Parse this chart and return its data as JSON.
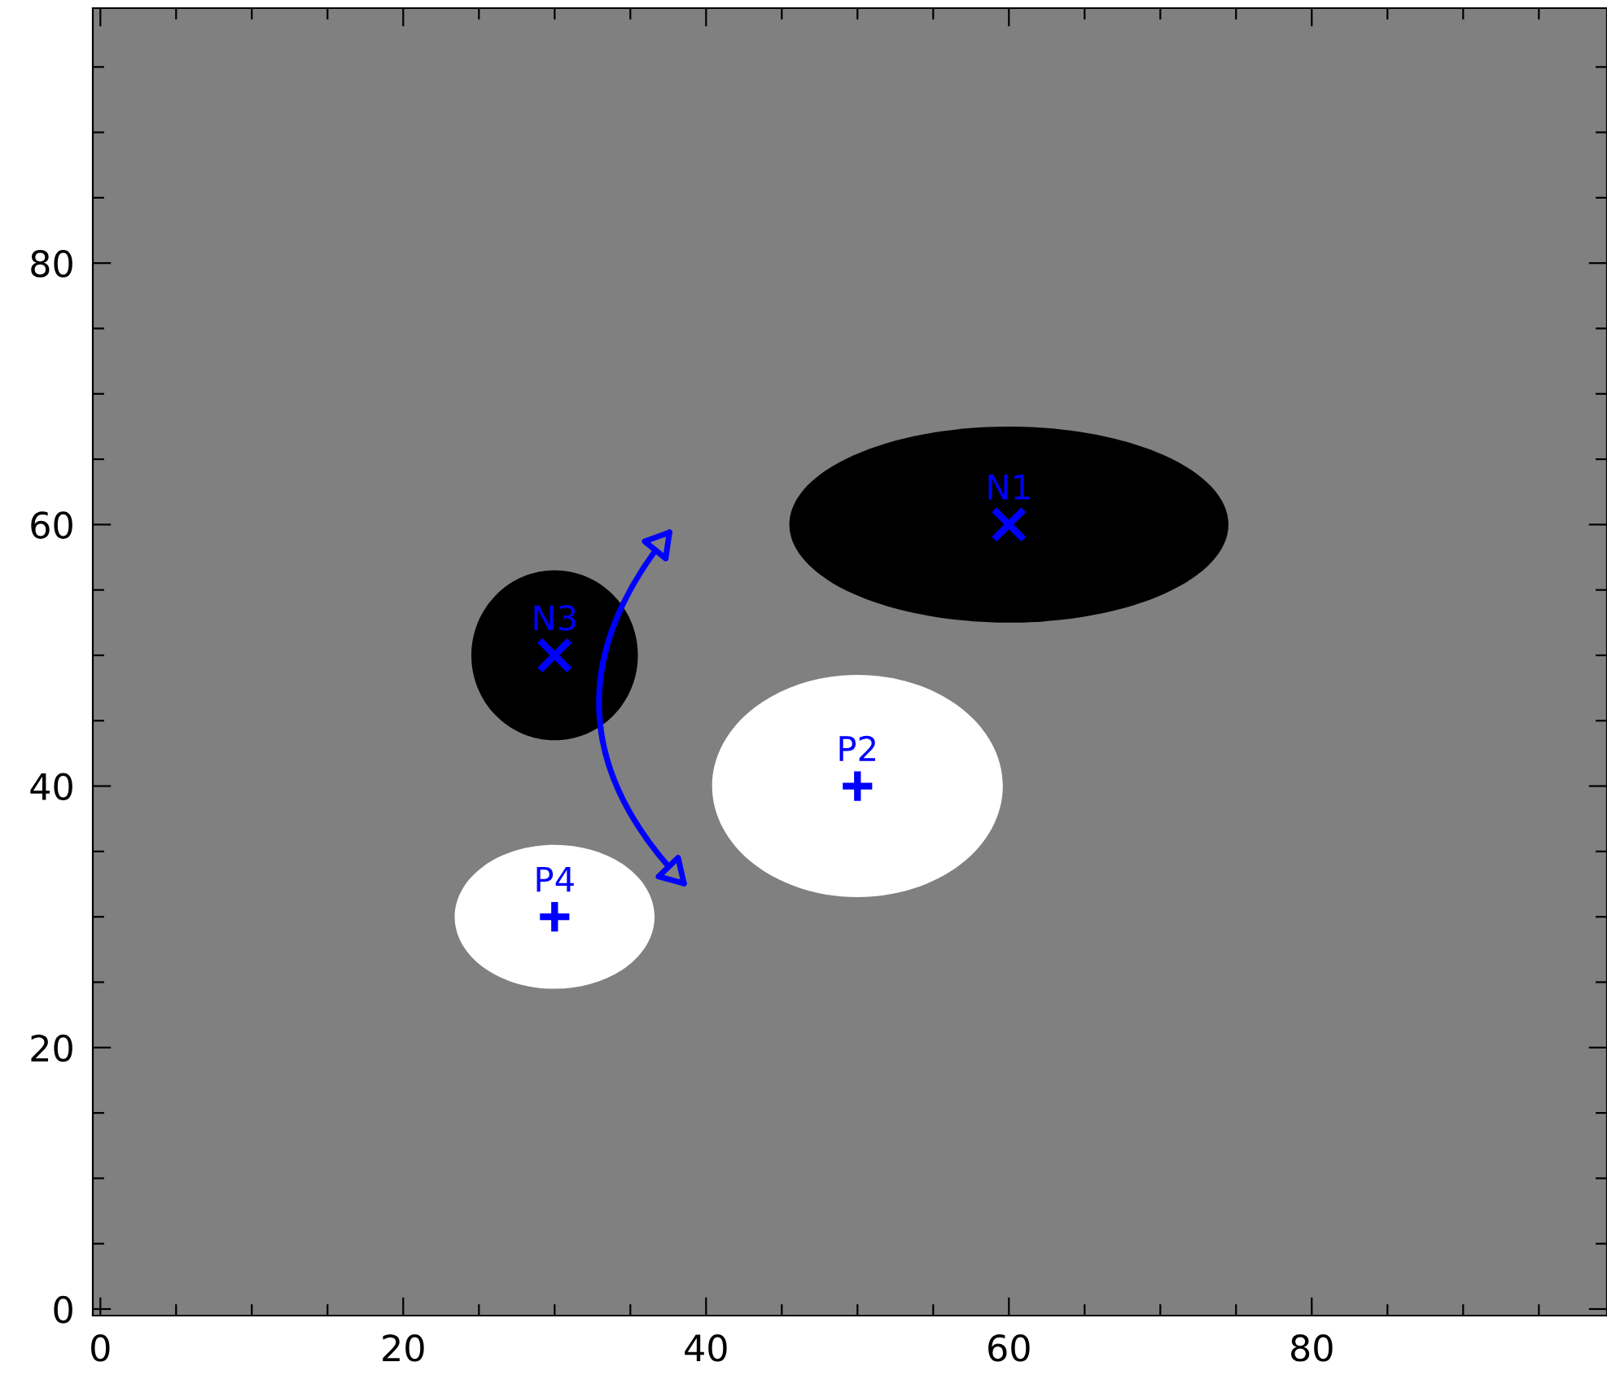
{
  "chart_data": {
    "type": "scatter",
    "xlim": [
      -0.5,
      99.5
    ],
    "ylim": [
      -0.5,
      99.5
    ],
    "xticks": [
      0,
      {
        "value": 5,
        "label": null
      },
      {
        "value": 10,
        "label": null
      },
      {
        "value": 15,
        "label": null
      },
      20,
      {
        "value": 25,
        "label": null
      },
      {
        "value": 30,
        "label": null
      },
      {
        "value": 35,
        "label": null
      },
      40,
      {
        "value": 45,
        "label": null
      },
      {
        "value": 50,
        "label": null
      },
      {
        "value": 55,
        "label": null
      },
      60,
      {
        "value": 65,
        "label": null
      },
      {
        "value": 70,
        "label": null
      },
      {
        "value": 75,
        "label": null
      },
      80,
      {
        "value": 85,
        "label": null
      },
      {
        "value": 90,
        "label": null
      },
      {
        "value": 95,
        "label": null
      }
    ],
    "yticks": [
      0,
      {
        "value": 5,
        "label": null
      },
      {
        "value": 10,
        "label": null
      },
      {
        "value": 15,
        "label": null
      },
      20,
      {
        "value": 25,
        "label": null
      },
      {
        "value": 30,
        "label": null
      },
      {
        "value": 35,
        "label": null
      },
      40,
      {
        "value": 45,
        "label": null
      },
      {
        "value": 50,
        "label": null
      },
      {
        "value": 55,
        "label": null
      },
      60,
      {
        "value": 65,
        "label": null
      },
      {
        "value": 70,
        "label": null
      },
      {
        "value": 75,
        "label": null
      },
      80,
      {
        "value": 85,
        "label": null
      },
      {
        "value": 90,
        "label": null
      },
      {
        "value": 95,
        "label": null
      }
    ],
    "series": [
      {
        "marker": "x",
        "color": "#0000ff",
        "x": [
          60,
          30
        ],
        "values": [
          60,
          50
        ]
      },
      {
        "marker": "cross",
        "color": "#0000ff",
        "x": [
          50,
          30
        ],
        "values": [
          40,
          30
        ]
      }
    ],
    "annotations": [
      {
        "text": "N1",
        "x": 60,
        "y": 60
      },
      {
        "text": "P2",
        "x": 50,
        "y": 40
      },
      {
        "text": "N3",
        "x": 30,
        "y": 50
      },
      {
        "text": "P4",
        "x": 30,
        "y": 30
      }
    ],
    "grid": false,
    "legend": false
  }
}
